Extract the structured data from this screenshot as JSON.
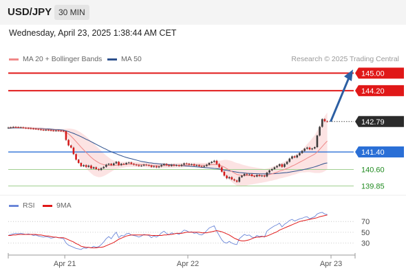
{
  "header": {
    "symbol": "USD/JPY",
    "timeframe": "30 MIN"
  },
  "timestamp": "Wednesday, April 23, 2025 1:38:44 AM CET",
  "credit": "Research © 2025 Trading Central",
  "legend_main": [
    {
      "label": "MA 20 + Bollinger Bands",
      "color": "#f08888"
    },
    {
      "label": "MA 50",
      "color": "#2c4f8c"
    }
  ],
  "legend_rsi": [
    {
      "label": "RSI",
      "color": "#6a86d8"
    },
    {
      "label": "9MA",
      "color": "#e01818"
    }
  ],
  "chart_data": {
    "type": "line",
    "instrument": "USD/JPY",
    "ylim": [
      139.55,
      145.2
    ],
    "current_price": "142.79",
    "levels": [
      {
        "label": "145.00",
        "value": 145.0,
        "kind": "resistance",
        "color": "#e01818"
      },
      {
        "label": "144.20",
        "value": 144.2,
        "kind": "resistance",
        "color": "#e01818"
      },
      {
        "label": "141.40",
        "value": 141.4,
        "kind": "pivot",
        "color": "#2a6fd6"
      },
      {
        "label": "140.60",
        "value": 140.6,
        "kind": "support",
        "color": "#2e8b2e"
      },
      {
        "label": "139.85",
        "value": 139.85,
        "kind": "support",
        "color": "#2e8b2e"
      }
    ],
    "x_ticks": [
      {
        "label": "Apr 21",
        "t": 22.5
      },
      {
        "label": "Apr 22",
        "t": 71.5
      },
      {
        "label": "Apr 23",
        "t": 128.5
      }
    ],
    "price_series": [
      142.51,
      142.52,
      142.54,
      142.53,
      142.52,
      142.52,
      142.5,
      142.49,
      142.48,
      142.47,
      142.46,
      142.45,
      142.43,
      142.41,
      142.4,
      142.41,
      142.4,
      142.38,
      142.37,
      142.38,
      142.37,
      142.36,
      142.35,
      141.95,
      141.7,
      141.6,
      141.3,
      141.05,
      140.9,
      140.75,
      140.8,
      140.72,
      140.78,
      140.65,
      140.7,
      140.62,
      140.58,
      140.66,
      140.72,
      140.82,
      140.86,
      140.8,
      140.88,
      140.95,
      140.8,
      140.86,
      140.84,
      140.9,
      140.92,
      140.86,
      140.82,
      140.8,
      140.76,
      140.78,
      140.82,
      140.8,
      140.78,
      140.72,
      140.75,
      140.7,
      140.74,
      140.8,
      140.85,
      140.8,
      140.76,
      140.82,
      140.78,
      140.8,
      140.76,
      140.82,
      140.88,
      140.86,
      140.82,
      140.84,
      140.78,
      140.8,
      140.75,
      140.72,
      140.76,
      140.82,
      140.9,
      140.95,
      141.0,
      140.85,
      140.7,
      140.5,
      140.32,
      140.2,
      140.25,
      140.15,
      140.1,
      140.04,
      140.25,
      140.32,
      140.4,
      140.36,
      140.38,
      140.3,
      140.28,
      140.35,
      140.3,
      140.32,
      140.28,
      140.46,
      140.56,
      140.62,
      140.7,
      140.76,
      140.84,
      140.72,
      140.85,
      140.95,
      141.1,
      141.2,
      141.15,
      141.25,
      141.35,
      141.45,
      141.55,
      141.6,
      141.52,
      141.56,
      141.62,
      142.15,
      142.55,
      142.9,
      142.8,
      142.79
    ],
    "ma20_series": [
      142.5,
      142.51,
      142.52,
      142.52,
      142.52,
      142.52,
      142.51,
      142.5,
      142.5,
      142.49,
      142.48,
      142.47,
      142.46,
      142.45,
      142.44,
      142.43,
      142.42,
      142.41,
      142.4,
      142.4,
      142.39,
      142.38,
      142.37,
      142.3,
      142.22,
      142.12,
      142.0,
      141.88,
      141.75,
      141.62,
      141.5,
      141.38,
      141.27,
      141.16,
      141.06,
      140.98,
      140.91,
      140.86,
      140.82,
      140.8,
      140.79,
      140.78,
      140.79,
      140.8,
      140.8,
      140.81,
      140.82,
      140.83,
      140.84,
      140.84,
      140.84,
      140.83,
      140.83,
      140.82,
      140.82,
      140.81,
      140.8,
      140.79,
      140.78,
      140.78,
      140.77,
      140.77,
      140.78,
      140.78,
      140.78,
      140.78,
      140.78,
      140.79,
      140.79,
      140.79,
      140.8,
      140.8,
      140.81,
      140.81,
      140.81,
      140.81,
      140.81,
      140.8,
      140.8,
      140.8,
      140.81,
      140.82,
      140.83,
      140.82,
      140.8,
      140.76,
      140.71,
      140.64,
      140.58,
      140.51,
      140.44,
      140.38,
      140.35,
      140.33,
      140.32,
      140.32,
      140.32,
      140.32,
      140.32,
      140.32,
      140.32,
      140.32,
      140.32,
      140.34,
      140.37,
      140.4,
      140.44,
      140.48,
      140.53,
      140.56,
      140.6,
      140.65,
      140.7,
      140.76,
      140.81,
      140.87,
      140.93,
      140.99,
      141.05,
      141.12,
      141.18,
      141.24,
      141.3,
      141.4,
      141.52,
      141.65,
      141.78,
      141.9
    ],
    "bb_width_series": [
      0.05,
      0.05,
      0.05,
      0.05,
      0.05,
      0.05,
      0.05,
      0.05,
      0.05,
      0.06,
      0.06,
      0.06,
      0.06,
      0.07,
      0.07,
      0.07,
      0.07,
      0.07,
      0.07,
      0.07,
      0.07,
      0.07,
      0.08,
      0.16,
      0.25,
      0.34,
      0.44,
      0.53,
      0.6,
      0.66,
      0.7,
      0.73,
      0.74,
      0.74,
      0.73,
      0.7,
      0.66,
      0.6,
      0.52,
      0.44,
      0.36,
      0.28,
      0.22,
      0.18,
      0.16,
      0.14,
      0.13,
      0.12,
      0.12,
      0.12,
      0.12,
      0.12,
      0.11,
      0.11,
      0.11,
      0.11,
      0.11,
      0.11,
      0.11,
      0.11,
      0.11,
      0.11,
      0.11,
      0.11,
      0.1,
      0.1,
      0.1,
      0.1,
      0.1,
      0.1,
      0.1,
      0.1,
      0.1,
      0.1,
      0.1,
      0.1,
      0.1,
      0.1,
      0.1,
      0.11,
      0.12,
      0.13,
      0.14,
      0.16,
      0.2,
      0.26,
      0.33,
      0.4,
      0.44,
      0.48,
      0.5,
      0.52,
      0.52,
      0.5,
      0.48,
      0.45,
      0.42,
      0.4,
      0.38,
      0.36,
      0.34,
      0.32,
      0.3,
      0.3,
      0.3,
      0.31,
      0.32,
      0.33,
      0.34,
      0.35,
      0.36,
      0.38,
      0.4,
      0.42,
      0.44,
      0.46,
      0.48,
      0.52,
      0.58,
      0.64,
      0.7,
      0.78,
      0.86,
      0.96,
      1.08,
      1.18,
      1.26,
      1.3
    ],
    "ma50_series": [
      142.48,
      142.49,
      142.5,
      142.5,
      142.5,
      142.5,
      142.5,
      142.5,
      142.49,
      142.49,
      142.48,
      142.48,
      142.47,
      142.47,
      142.46,
      142.45,
      142.45,
      142.44,
      142.43,
      142.42,
      142.42,
      142.41,
      142.4,
      142.36,
      142.33,
      142.29,
      142.25,
      142.2,
      142.15,
      142.1,
      142.04,
      141.98,
      141.93,
      141.87,
      141.81,
      141.75,
      141.69,
      141.63,
      141.57,
      141.52,
      141.46,
      141.41,
      141.36,
      141.32,
      141.27,
      141.23,
      141.19,
      141.15,
      141.12,
      141.09,
      141.06,
      141.03,
      141.0,
      140.97,
      140.95,
      140.93,
      140.91,
      140.9,
      140.88,
      140.87,
      140.86,
      140.85,
      140.84,
      140.83,
      140.82,
      140.81,
      140.81,
      140.8,
      140.79,
      140.78,
      140.77,
      140.76,
      140.75,
      140.74,
      140.73,
      140.72,
      140.71,
      140.7,
      140.69,
      140.68,
      140.67,
      140.66,
      140.65,
      140.64,
      140.62,
      140.6,
      140.58,
      140.56,
      140.54,
      140.52,
      140.5,
      140.48,
      140.46,
      140.45,
      140.44,
      140.43,
      140.42,
      140.42,
      140.41,
      140.41,
      140.4,
      140.4,
      140.4,
      140.4,
      140.4,
      140.41,
      140.41,
      140.42,
      140.43,
      140.44,
      140.45,
      140.46,
      140.48,
      140.5,
      140.52,
      140.54,
      140.56,
      140.58,
      140.61,
      140.63,
      140.66,
      140.69,
      140.72,
      140.76,
      140.8,
      140.84,
      140.88,
      140.9
    ],
    "rsi": {
      "levels": [
        70,
        50,
        30
      ],
      "ylim": [
        14,
        92
      ],
      "rsi_series": [
        44,
        46,
        47,
        48,
        47,
        48,
        47,
        46,
        47,
        46,
        44,
        45,
        43,
        42,
        41,
        42,
        41,
        39,
        40,
        41,
        40,
        39,
        38,
        30,
        26,
        24,
        22,
        20,
        19,
        18,
        21,
        20,
        22,
        21,
        24,
        22,
        23,
        27,
        32,
        38,
        42,
        38,
        45,
        50,
        40,
        44,
        43,
        47,
        48,
        45,
        44,
        43,
        41,
        43,
        46,
        45,
        44,
        40,
        43,
        41,
        44,
        49,
        52,
        48,
        45,
        49,
        47,
        48,
        46,
        50,
        54,
        53,
        50,
        51,
        48,
        49,
        46,
        45,
        48,
        53,
        58,
        60,
        62,
        52,
        44,
        36,
        31,
        30,
        33,
        30,
        28,
        27,
        38,
        42,
        46,
        44,
        45,
        41,
        40,
        44,
        42,
        43,
        41,
        52,
        56,
        59,
        62,
        64,
        67,
        60,
        65,
        68,
        72,
        74,
        71,
        73,
        75,
        76,
        78,
        79,
        75,
        77,
        79,
        84,
        86,
        87,
        84,
        83
      ],
      "ma9_series": [
        44,
        44,
        45,
        45,
        46,
        46,
        46,
        46,
        46,
        46,
        46,
        46,
        45,
        45,
        44,
        43,
        43,
        42,
        41,
        41,
        40,
        40,
        40,
        38,
        36,
        34,
        32,
        29,
        27,
        24,
        23,
        22,
        22,
        21,
        21,
        21,
        22,
        22,
        23,
        25,
        27,
        29,
        31,
        34,
        37,
        39,
        41,
        43,
        44,
        45,
        45,
        45,
        45,
        45,
        45,
        45,
        45,
        44,
        44,
        44,
        44,
        44,
        45,
        45,
        46,
        46,
        47,
        48,
        48,
        48,
        49,
        50,
        50,
        50,
        50,
        50,
        50,
        49,
        49,
        49,
        50,
        51,
        52,
        53,
        52,
        51,
        49,
        47,
        45,
        42,
        39,
        37,
        35,
        34,
        34,
        35,
        36,
        38,
        40,
        41,
        41,
        42,
        42,
        43,
        45,
        47,
        49,
        51,
        54,
        56,
        58,
        60,
        62,
        64,
        66,
        68,
        70,
        71,
        72,
        73,
        74,
        75,
        76,
        77,
        79,
        80,
        81,
        82
      ]
    },
    "projection": {
      "from_value": 142.79,
      "to_value": 145.1
    }
  }
}
